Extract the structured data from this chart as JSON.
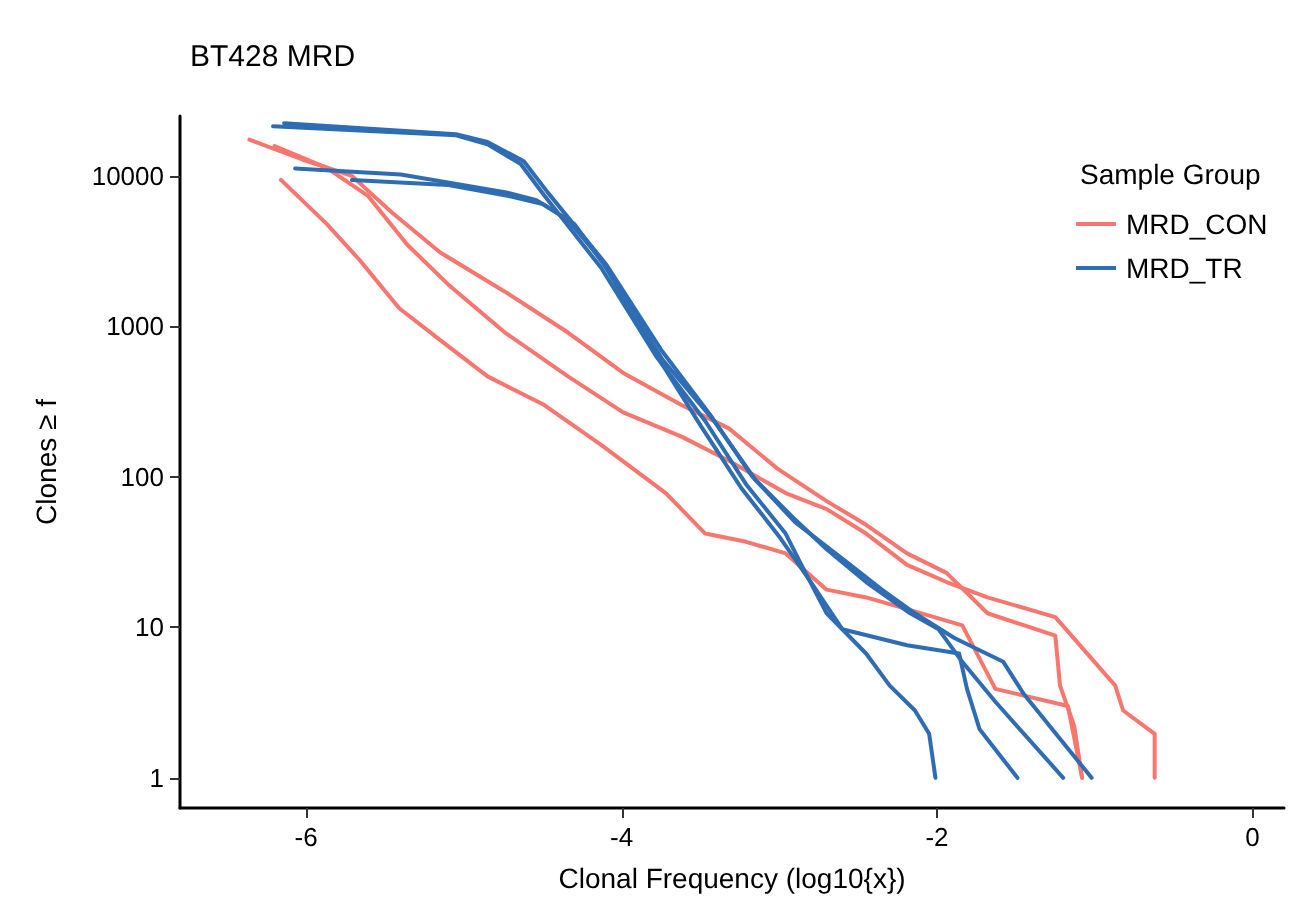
{
  "chart_data": {
    "type": "line",
    "title": "BT428 MRD",
    "xlabel": "Clonal Frequency (log10{x})",
    "ylabel": "Clones ≥ f",
    "legend_title": "Sample Group",
    "legend": "top right",
    "log": "y",
    "grid": false,
    "marker": "none",
    "line_style": "solid",
    "xlim": [
      -6.8,
      0.2
    ],
    "xticks": [
      -6,
      -4,
      -2,
      0
    ],
    "ylim": [
      0.63,
      25000
    ],
    "yticks": [
      1,
      10,
      100,
      1000,
      10000
    ],
    "series": [
      {
        "name": "MRD_CON",
        "color": "#f8766d",
        "x": [
          -6.36,
          -6.02,
          -5.71,
          -5.46,
          -5.15,
          -4.74,
          -4.34,
          -3.99,
          -3.62,
          -3.32,
          -3.01,
          -2.7,
          -2.45,
          -2.19,
          -1.94,
          -1.68,
          -1.25,
          -1.22,
          -1.13,
          -1.08
        ],
        "values": [
          17400,
          12800,
          10000,
          5750,
          3100,
          1700,
          910,
          490,
          300,
          210,
          113,
          69,
          48,
          31,
          23,
          12.4,
          8.8,
          4.1,
          2.2,
          1
        ]
      },
      {
        "color": "#f8766d",
        "x": [
          -6.2,
          -5.87,
          -5.61,
          -5.36,
          -5.1,
          -4.74,
          -4.34,
          -3.99,
          -3.62,
          -3.32,
          -2.96,
          -2.7,
          -2.45,
          -2.19,
          -1.94,
          -1.68,
          -1.25,
          -0.87,
          -0.82,
          -0.62,
          -0.62
        ],
        "values": [
          15800,
          11300,
          7400,
          3500,
          1900,
          910,
          465,
          268,
          185,
          128,
          78,
          61,
          42,
          26,
          20,
          15.8,
          11.7,
          4.1,
          2.8,
          1.96,
          1
        ]
      },
      {
        "color": "#f8766d",
        "x": [
          -6.16,
          -5.87,
          -5.66,
          -5.41,
          -5.15,
          -4.85,
          -4.49,
          -4.13,
          -3.72,
          -3.47,
          -3.21,
          -2.96,
          -2.7,
          -2.45,
          -2.19,
          -1.84,
          -1.63,
          -1.17,
          -1.08
        ],
        "values": [
          9400,
          4800,
          2750,
          1320,
          810,
          465,
          300,
          163,
          78,
          42,
          37,
          31,
          17.8,
          15.8,
          13.2,
          10.3,
          3.9,
          3,
          1
        ]
      },
      {
        "name": "MRD_TR",
        "color": "#2e6db4",
        "x": [
          -6.21,
          -5.05,
          -4.85,
          -4.64,
          -4.49,
          -4.13,
          -3.78,
          -3.47,
          -3.21,
          -2.96,
          -2.86,
          -2.7,
          -2.45,
          -2.3,
          -2.14,
          -2.05,
          -2.01
        ],
        "values": [
          21400,
          18600,
          16200,
          12000,
          7400,
          2450,
          630,
          235,
          89,
          42,
          26,
          12.4,
          6.7,
          4.1,
          2.8,
          1.96,
          1
        ]
      },
      {
        "color": "#2e6db4",
        "x": [
          -6.14,
          -5.05,
          -4.85,
          -4.62,
          -4.47,
          -4.1,
          -3.75,
          -3.44,
          -3.17,
          -2.9,
          -2.7,
          -2.45,
          -2.17,
          -1.99,
          -1.84,
          -1.63,
          -1.2
        ],
        "values": [
          22400,
          18900,
          16800,
          12500,
          7800,
          2600,
          700,
          260,
          100,
          52,
          33,
          20,
          12.4,
          9.7,
          5.9,
          3.2,
          1
        ]
      },
      {
        "color": "#2e6db4",
        "x": [
          -6.07,
          -5.4,
          -4.74,
          -4.54,
          -4.34,
          -4.12,
          -3.8,
          -3.5,
          -3.24,
          -3,
          -2.8,
          -2.6,
          -2.19,
          -1.86,
          -1.81,
          -1.73,
          -1.49
        ],
        "values": [
          11200,
          10200,
          7800,
          6900,
          5100,
          2700,
          700,
          220,
          84,
          40,
          20,
          9.7,
          7.6,
          6.7,
          3.9,
          2.1,
          1
        ]
      },
      {
        "color": "#2e6db4",
        "x": [
          -5.71,
          -5.1,
          -4.7,
          -4.5,
          -4.3,
          -4.08,
          -3.74,
          -3.42,
          -3.15,
          -2.9,
          -2.55,
          -2.35,
          -2.14,
          -1.89,
          -1.58,
          -1.45,
          -1.02
        ],
        "values": [
          9400,
          8700,
          7300,
          6500,
          4800,
          2300,
          600,
          240,
          95,
          50,
          26,
          17.8,
          12.4,
          8.5,
          5.9,
          3.6,
          1
        ]
      }
    ]
  }
}
